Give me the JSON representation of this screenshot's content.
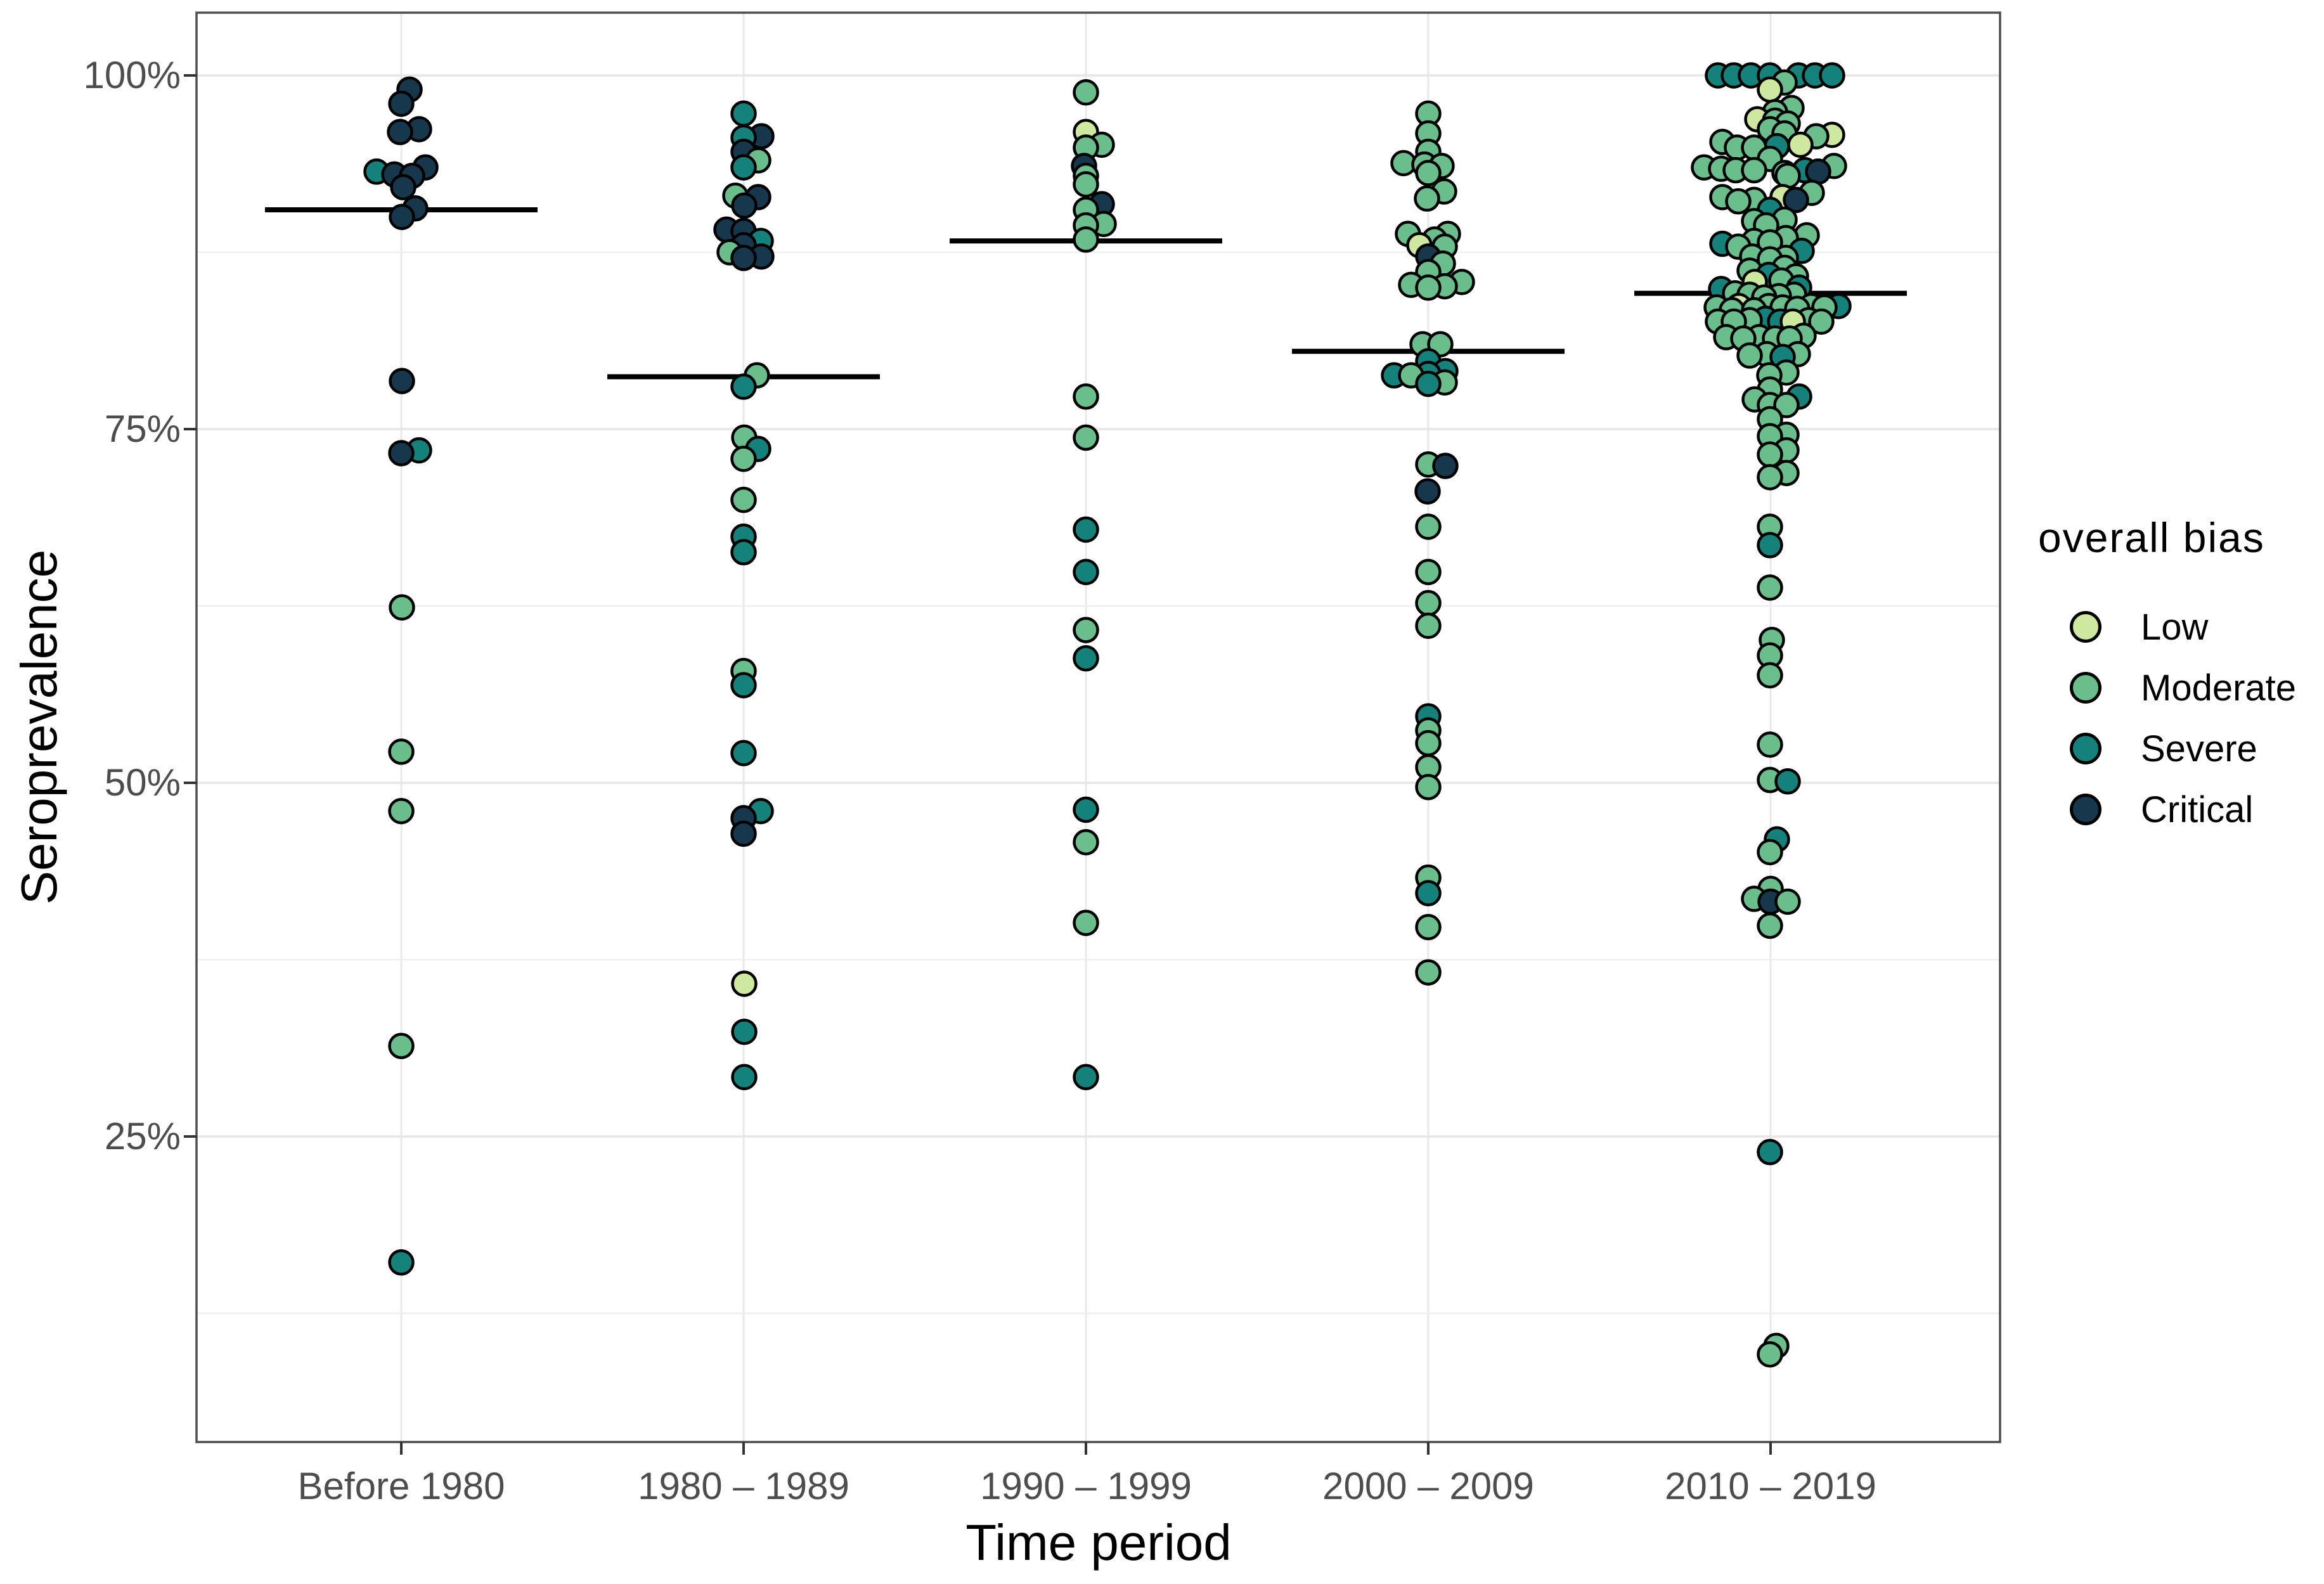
{
  "y_axis": {
    "label": "Seroprevalence",
    "ticks": [
      "100%",
      "75%",
      "50%",
      "25%"
    ],
    "tick_values": [
      100,
      75,
      50,
      25
    ],
    "minor_grid_values": [
      87.5,
      62.5,
      37.5,
      12.5
    ]
  },
  "x_axis": {
    "label": "Time period",
    "categories": [
      "Before 1980",
      "1980 – 1989",
      "1990 – 1999",
      "2000 – 2009",
      "2010 – 2019"
    ]
  },
  "legend": {
    "title": "overall bias",
    "items": [
      {
        "label": "Low",
        "color": "#cfe8a0"
      },
      {
        "label": "Moderate",
        "color": "#6abe8c"
      },
      {
        "label": "Severe",
        "color": "#14827a"
      },
      {
        "label": "Critical",
        "color": "#17374d"
      }
    ]
  },
  "chart_data": {
    "type": "scatter",
    "subtype": "jittered-dotplot-with-mean-bars",
    "title": "",
    "xlabel": "Time period",
    "ylabel": "Seroprevalence",
    "ylim": [
      0,
      100
    ],
    "y_units": "percent",
    "grid": "on",
    "legend_position": "right",
    "categories": [
      "Before 1980",
      "1980 – 1989",
      "1990 – 1999",
      "2000 – 2009",
      "2010 – 2019"
    ],
    "bias_levels": [
      "Low",
      "Moderate",
      "Severe",
      "Critical"
    ],
    "bias_colors": {
      "Low": "#cfe8a0",
      "Moderate": "#6abe8c",
      "Severe": "#14827a",
      "Critical": "#17374d"
    },
    "mean_values": [
      90.5,
      78.7,
      88.3,
      80.5,
      84.6
    ],
    "points_format": [
      "category_index",
      "seroprevalence_pct",
      "bias_level_index",
      "jitter_px"
    ],
    "points": [
      [
        0,
        99.0,
        3,
        13
      ],
      [
        0,
        98.0,
        3,
        0
      ],
      [
        0,
        96.2,
        3,
        28
      ],
      [
        0,
        96.0,
        3,
        -2
      ],
      [
        0,
        93.5,
        3,
        38
      ],
      [
        0,
        93.2,
        2,
        -39
      ],
      [
        0,
        93.0,
        3,
        -11
      ],
      [
        0,
        92.9,
        3,
        17
      ],
      [
        0,
        92.1,
        3,
        3
      ],
      [
        0,
        90.6,
        3,
        22
      ],
      [
        0,
        90.0,
        3,
        1
      ],
      [
        0,
        78.4,
        3,
        1
      ],
      [
        0,
        73.5,
        2,
        28
      ],
      [
        0,
        73.3,
        3,
        0
      ],
      [
        0,
        62.4,
        1,
        1
      ],
      [
        0,
        52.2,
        1,
        0
      ],
      [
        0,
        48.0,
        1,
        0
      ],
      [
        0,
        31.4,
        1,
        0
      ],
      [
        0,
        16.1,
        2,
        0
      ],
      [
        1,
        97.3,
        2,
        0
      ],
      [
        1,
        95.7,
        3,
        28
      ],
      [
        1,
        95.6,
        2,
        0
      ],
      [
        1,
        94.6,
        3,
        0
      ],
      [
        1,
        94.0,
        1,
        23
      ],
      [
        1,
        93.5,
        2,
        0
      ],
      [
        1,
        91.5,
        1,
        -13
      ],
      [
        1,
        91.4,
        3,
        23
      ],
      [
        1,
        90.8,
        3,
        1
      ],
      [
        1,
        89.1,
        3,
        -27
      ],
      [
        1,
        89.0,
        3,
        0
      ],
      [
        1,
        88.3,
        2,
        27
      ],
      [
        1,
        88.0,
        3,
        0
      ],
      [
        1,
        87.5,
        1,
        -22
      ],
      [
        1,
        87.2,
        3,
        28
      ],
      [
        1,
        87.1,
        3,
        0
      ],
      [
        1,
        78.8,
        1,
        21
      ],
      [
        1,
        78.0,
        2,
        0
      ],
      [
        1,
        74.4,
        1,
        1
      ],
      [
        1,
        73.6,
        2,
        23
      ],
      [
        1,
        72.9,
        1,
        0
      ],
      [
        1,
        70.0,
        1,
        0
      ],
      [
        1,
        67.4,
        2,
        0
      ],
      [
        1,
        66.3,
        2,
        0
      ],
      [
        1,
        57.9,
        1,
        0
      ],
      [
        1,
        56.9,
        2,
        0
      ],
      [
        1,
        52.1,
        2,
        0
      ],
      [
        1,
        48.0,
        2,
        27
      ],
      [
        1,
        47.5,
        3,
        0
      ],
      [
        1,
        46.4,
        3,
        0
      ],
      [
        1,
        35.8,
        0,
        1
      ],
      [
        1,
        32.4,
        2,
        1
      ],
      [
        1,
        29.2,
        2,
        1
      ],
      [
        2,
        98.8,
        1,
        0
      ],
      [
        2,
        96.0,
        0,
        0
      ],
      [
        2,
        95.1,
        1,
        25
      ],
      [
        2,
        94.9,
        1,
        0
      ],
      [
        2,
        93.6,
        3,
        -3
      ],
      [
        2,
        92.9,
        1,
        0
      ],
      [
        2,
        92.3,
        1,
        0
      ],
      [
        2,
        90.9,
        3,
        25
      ],
      [
        2,
        90.5,
        1,
        0
      ],
      [
        2,
        89.5,
        1,
        28
      ],
      [
        2,
        89.4,
        1,
        0
      ],
      [
        2,
        88.4,
        1,
        0
      ],
      [
        2,
        77.3,
        1,
        0
      ],
      [
        2,
        74.4,
        1,
        0
      ],
      [
        2,
        67.9,
        2,
        0
      ],
      [
        2,
        64.9,
        2,
        0
      ],
      [
        2,
        60.8,
        1,
        0
      ],
      [
        2,
        58.8,
        2,
        0
      ],
      [
        2,
        48.1,
        2,
        0
      ],
      [
        2,
        45.8,
        1,
        0
      ],
      [
        2,
        40.1,
        1,
        0
      ],
      [
        2,
        29.2,
        2,
        0
      ],
      [
        3,
        97.3,
        1,
        0
      ],
      [
        3,
        95.9,
        1,
        0
      ],
      [
        3,
        94.6,
        1,
        0
      ],
      [
        3,
        93.8,
        1,
        -39
      ],
      [
        3,
        93.7,
        1,
        -6
      ],
      [
        3,
        93.6,
        1,
        21
      ],
      [
        3,
        93.1,
        1,
        0
      ],
      [
        3,
        91.8,
        1,
        25
      ],
      [
        3,
        91.3,
        1,
        -2
      ],
      [
        3,
        88.8,
        1,
        -32
      ],
      [
        3,
        88.8,
        1,
        31
      ],
      [
        3,
        88.4,
        1,
        10
      ],
      [
        3,
        88.0,
        0,
        -14
      ],
      [
        3,
        87.9,
        1,
        26
      ],
      [
        3,
        87.2,
        3,
        0
      ],
      [
        3,
        86.7,
        1,
        23
      ],
      [
        3,
        86.1,
        1,
        0
      ],
      [
        3,
        85.4,
        1,
        53
      ],
      [
        3,
        85.2,
        1,
        -27
      ],
      [
        3,
        85.1,
        1,
        26
      ],
      [
        3,
        85.0,
        1,
        0
      ],
      [
        3,
        81.0,
        1,
        -9
      ],
      [
        3,
        81.0,
        1,
        19
      ],
      [
        3,
        79.8,
        2,
        0
      ],
      [
        3,
        79.1,
        2,
        27
      ],
      [
        3,
        78.9,
        2,
        0
      ],
      [
        3,
        78.8,
        2,
        -54
      ],
      [
        3,
        78.8,
        1,
        -27
      ],
      [
        3,
        78.3,
        1,
        26
      ],
      [
        3,
        78.2,
        2,
        0
      ],
      [
        3,
        72.5,
        1,
        0
      ],
      [
        3,
        72.4,
        3,
        27
      ],
      [
        3,
        70.6,
        3,
        -1
      ],
      [
        3,
        68.1,
        1,
        0
      ],
      [
        3,
        64.9,
        1,
        0
      ],
      [
        3,
        62.7,
        1,
        0
      ],
      [
        3,
        61.1,
        1,
        0
      ],
      [
        3,
        54.7,
        2,
        0
      ],
      [
        3,
        53.7,
        1,
        0
      ],
      [
        3,
        52.8,
        1,
        0
      ],
      [
        3,
        51.1,
        1,
        0
      ],
      [
        3,
        49.7,
        1,
        0
      ],
      [
        3,
        43.3,
        1,
        0
      ],
      [
        3,
        42.2,
        2,
        0
      ],
      [
        3,
        39.8,
        1,
        0
      ],
      [
        3,
        36.6,
        1,
        0
      ],
      [
        4,
        100,
        2,
        -83
      ],
      [
        4,
        100,
        2,
        -58
      ],
      [
        4,
        100,
        2,
        -31
      ],
      [
        4,
        100,
        2,
        -1
      ],
      [
        4,
        100,
        2,
        44
      ],
      [
        4,
        100,
        2,
        70
      ],
      [
        4,
        100,
        2,
        97
      ],
      [
        4,
        99.5,
        1,
        22
      ],
      [
        4,
        99.0,
        0,
        -1
      ],
      [
        4,
        97.7,
        1,
        33
      ],
      [
        4,
        97.4,
        1,
        7
      ],
      [
        4,
        96.9,
        0,
        -21
      ],
      [
        4,
        96.8,
        1,
        7
      ],
      [
        4,
        96.6,
        1,
        27
      ],
      [
        4,
        96.2,
        1,
        -1
      ],
      [
        4,
        95.9,
        1,
        22
      ],
      [
        4,
        95.8,
        0,
        97
      ],
      [
        4,
        95.7,
        1,
        72
      ],
      [
        4,
        95.3,
        1,
        -76
      ],
      [
        4,
        95.1,
        0,
        47
      ],
      [
        4,
        95.0,
        2,
        10
      ],
      [
        4,
        94.9,
        1,
        -53
      ],
      [
        4,
        94.9,
        1,
        -26
      ],
      [
        4,
        94.1,
        1,
        -1
      ],
      [
        4,
        93.6,
        1,
        100
      ],
      [
        4,
        93.5,
        1,
        -105
      ],
      [
        4,
        93.4,
        1,
        -78
      ],
      [
        4,
        93.3,
        1,
        -55
      ],
      [
        4,
        93.3,
        1,
        -26
      ],
      [
        4,
        93.3,
        2,
        54
      ],
      [
        4,
        93.2,
        3,
        75
      ],
      [
        4,
        93.1,
        1,
        22
      ],
      [
        4,
        92.9,
        1,
        27
      ],
      [
        4,
        91.7,
        1,
        65
      ],
      [
        4,
        91.4,
        1,
        -76
      ],
      [
        4,
        91.4,
        0,
        19
      ],
      [
        4,
        91.2,
        1,
        -26
      ],
      [
        4,
        91.2,
        3,
        40
      ],
      [
        4,
        91.1,
        1,
        -51
      ],
      [
        4,
        90.5,
        2,
        -1
      ],
      [
        4,
        89.8,
        1,
        22
      ],
      [
        4,
        89.7,
        1,
        -26
      ],
      [
        4,
        89.4,
        1,
        -7
      ],
      [
        4,
        88.7,
        1,
        57
      ],
      [
        4,
        88.5,
        1,
        24
      ],
      [
        4,
        88.3,
        1,
        -26
      ],
      [
        4,
        88.2,
        1,
        -1
      ],
      [
        4,
        88.1,
        2,
        -76
      ],
      [
        4,
        87.9,
        1,
        -51
      ],
      [
        4,
        87.6,
        2,
        49
      ],
      [
        4,
        87.2,
        1,
        -29
      ],
      [
        4,
        87.1,
        1,
        24
      ],
      [
        4,
        87.0,
        1,
        -1
      ],
      [
        4,
        86.4,
        1,
        22
      ],
      [
        4,
        86.2,
        1,
        -33
      ],
      [
        4,
        85.9,
        2,
        -3
      ],
      [
        4,
        85.8,
        1,
        40
      ],
      [
        4,
        85.5,
        1,
        17
      ],
      [
        4,
        85.4,
        0,
        -25
      ],
      [
        4,
        85.0,
        2,
        45
      ],
      [
        4,
        84.9,
        2,
        -78
      ],
      [
        4,
        84.6,
        1,
        -56
      ],
      [
        4,
        84.5,
        1,
        -33
      ],
      [
        4,
        84.5,
        1,
        37
      ],
      [
        4,
        84.4,
        1,
        13
      ],
      [
        4,
        84.3,
        1,
        -10
      ],
      [
        4,
        83.7,
        0,
        -50
      ],
      [
        4,
        83.7,
        1,
        -3
      ],
      [
        4,
        83.7,
        1,
        64
      ],
      [
        4,
        83.7,
        2,
        107
      ],
      [
        4,
        83.6,
        1,
        -85
      ],
      [
        4,
        83.6,
        1,
        19
      ],
      [
        4,
        83.6,
        1,
        85
      ],
      [
        4,
        83.5,
        1,
        42
      ],
      [
        4,
        83.4,
        1,
        -61
      ],
      [
        4,
        83.4,
        1,
        -26
      ],
      [
        4,
        82.8,
        2,
        -8
      ],
      [
        4,
        82.7,
        1,
        -33
      ],
      [
        4,
        82.7,
        1,
        60
      ],
      [
        4,
        82.6,
        1,
        -83
      ],
      [
        4,
        82.6,
        1,
        -58
      ],
      [
        4,
        82.6,
        2,
        15
      ],
      [
        4,
        82.6,
        0,
        35
      ],
      [
        4,
        82.6,
        1,
        80
      ],
      [
        4,
        81.6,
        1,
        52
      ],
      [
        4,
        81.5,
        1,
        -70
      ],
      [
        4,
        81.5,
        1,
        -18
      ],
      [
        4,
        81.4,
        1,
        -43
      ],
      [
        4,
        81.4,
        1,
        7
      ],
      [
        4,
        81.4,
        1,
        30
      ],
      [
        4,
        80.3,
        1,
        -6
      ],
      [
        4,
        80.3,
        1,
        43
      ],
      [
        4,
        80.2,
        1,
        -33
      ],
      [
        4,
        80.1,
        2,
        19
      ],
      [
        4,
        79.0,
        1,
        25
      ],
      [
        4,
        78.8,
        1,
        -2
      ],
      [
        4,
        77.8,
        1,
        -1
      ],
      [
        4,
        77.3,
        2,
        45
      ],
      [
        4,
        77.1,
        1,
        -25
      ],
      [
        4,
        76.7,
        1,
        -1
      ],
      [
        4,
        76.7,
        1,
        25
      ],
      [
        4,
        75.7,
        1,
        -1
      ],
      [
        4,
        74.6,
        1,
        25
      ],
      [
        4,
        74.5,
        1,
        -1
      ],
      [
        4,
        73.5,
        1,
        25
      ],
      [
        4,
        73.2,
        1,
        -1
      ],
      [
        4,
        71.9,
        1,
        25
      ],
      [
        4,
        71.6,
        1,
        -1
      ],
      [
        4,
        68.1,
        1,
        -1
      ],
      [
        4,
        66.8,
        2,
        -1
      ],
      [
        4,
        63.8,
        1,
        -1
      ],
      [
        4,
        60.1,
        1,
        2
      ],
      [
        4,
        59.0,
        1,
        -1
      ],
      [
        4,
        57.6,
        1,
        -1
      ],
      [
        4,
        52.7,
        1,
        -1
      ],
      [
        4,
        50.2,
        1,
        -1
      ],
      [
        4,
        50.1,
        2,
        27
      ],
      [
        4,
        46.0,
        2,
        10
      ],
      [
        4,
        45.1,
        1,
        -1
      ],
      [
        4,
        42.5,
        1,
        0
      ],
      [
        4,
        41.8,
        1,
        -26
      ],
      [
        4,
        41.6,
        3,
        0
      ],
      [
        4,
        41.6,
        1,
        27
      ],
      [
        4,
        39.9,
        1,
        -1
      ],
      [
        4,
        23.9,
        2,
        -1
      ],
      [
        4,
        10.2,
        1,
        9
      ],
      [
        4,
        9.6,
        1,
        -1
      ]
    ]
  }
}
